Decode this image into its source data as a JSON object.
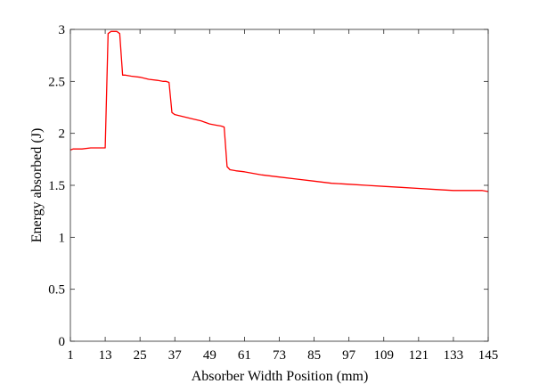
{
  "chart_data": {
    "type": "line",
    "title": "",
    "xlabel": "Absorber Width Position (mm)",
    "ylabel": "Energy absorbed (J)",
    "xlim": [
      1,
      145
    ],
    "ylim": [
      0,
      3
    ],
    "xticks": [
      1,
      13,
      25,
      37,
      49,
      61,
      73,
      85,
      97,
      109,
      121,
      133,
      145
    ],
    "yticks": [
      0,
      0.5,
      1,
      1.5,
      2,
      2.5,
      3
    ],
    "ytick_labels": [
      "0",
      "0.5",
      "1",
      "1.5",
      "2",
      "2.5",
      "3"
    ],
    "grid": false,
    "legend": "none",
    "series": [
      {
        "color": "#ff0000",
        "x": [
          1,
          2,
          5,
          8,
          11,
          13,
          14,
          15,
          16,
          17,
          18,
          19,
          20,
          22,
          25,
          28,
          31,
          33,
          34,
          35,
          36,
          37,
          40,
          43,
          46,
          49,
          51,
          53,
          54,
          55,
          56,
          58,
          61,
          67,
          73,
          79,
          85,
          91,
          97,
          103,
          109,
          115,
          121,
          127,
          133,
          137,
          140,
          143,
          145
        ],
        "y": [
          1.84,
          1.85,
          1.85,
          1.86,
          1.86,
          1.86,
          2.96,
          2.98,
          2.98,
          2.98,
          2.96,
          2.56,
          2.56,
          2.55,
          2.54,
          2.52,
          2.51,
          2.5,
          2.5,
          2.49,
          2.2,
          2.18,
          2.16,
          2.14,
          2.12,
          2.09,
          2.08,
          2.07,
          2.06,
          1.68,
          1.65,
          1.64,
          1.63,
          1.6,
          1.58,
          1.56,
          1.54,
          1.52,
          1.51,
          1.5,
          1.49,
          1.48,
          1.47,
          1.46,
          1.45,
          1.45,
          1.45,
          1.45,
          1.44
        ]
      }
    ]
  }
}
